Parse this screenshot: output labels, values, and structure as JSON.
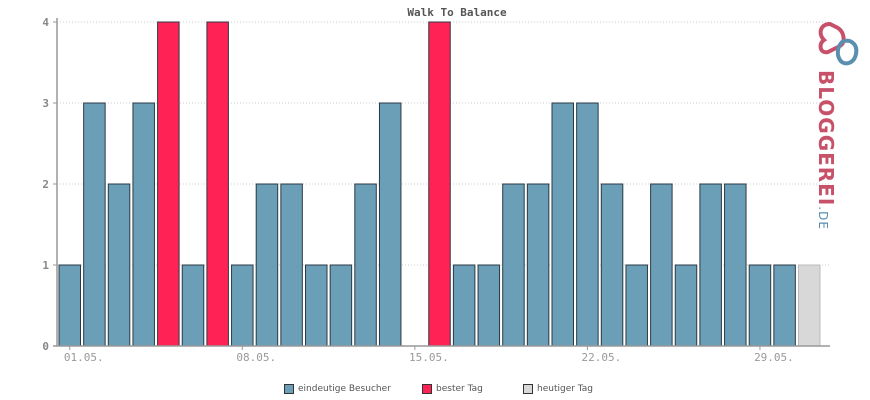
{
  "chart_data": {
    "type": "bar",
    "title": "Walk To Balance",
    "ylim": [
      0,
      4
    ],
    "yticks": [
      "0",
      "1",
      "2",
      "3",
      "4"
    ],
    "xtick_labels": [
      "01.05.",
      "08.05.",
      "15.05.",
      "22.05.",
      "29.05."
    ],
    "values": [
      1,
      3,
      2,
      3,
      4,
      1,
      4,
      1,
      2,
      2,
      1,
      1,
      2,
      3,
      0,
      4,
      1,
      1,
      2,
      2,
      3,
      3,
      2,
      1,
      2,
      1,
      2,
      2,
      1,
      1,
      1
    ],
    "bar_types": [
      "normal",
      "normal",
      "normal",
      "normal",
      "best",
      "normal",
      "best",
      "normal",
      "normal",
      "normal",
      "normal",
      "normal",
      "normal",
      "normal",
      "normal",
      "best",
      "normal",
      "normal",
      "normal",
      "normal",
      "normal",
      "normal",
      "normal",
      "normal",
      "normal",
      "normal",
      "normal",
      "normal",
      "normal",
      "normal",
      "today"
    ],
    "colors": {
      "normal": "#6b9fb8",
      "best": "#ff2255",
      "today": "#d8d8d8",
      "bar_stroke": "#2a3a44",
      "grid": "#cccccc",
      "axis": "#999999"
    },
    "grid": true,
    "legend": {
      "placement": "bottom",
      "items": [
        {
          "label": "eindeutige Besucher",
          "color": "#6b9fb8"
        },
        {
          "label": "bester Tag",
          "color": "#ff2255"
        },
        {
          "label": "heutiger Tag",
          "color": "#d8d8d8"
        }
      ]
    }
  },
  "logo": {
    "text": "BLOGGEREI",
    "suffix": ".DE"
  }
}
